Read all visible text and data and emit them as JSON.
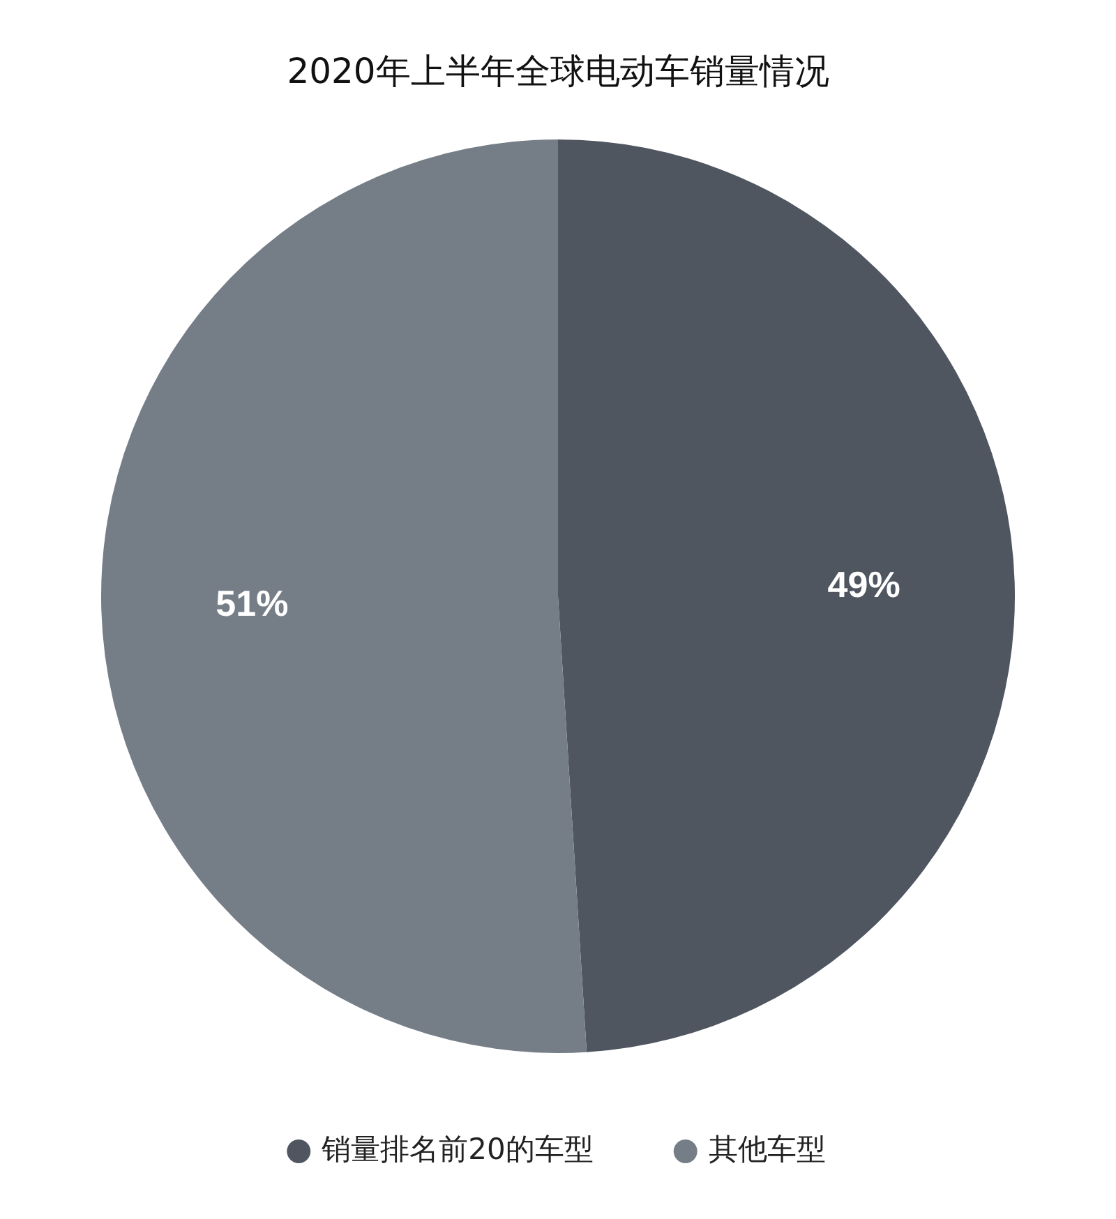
{
  "chart_data": {
    "type": "pie",
    "title": "2020年上半年全球电动车销量情况",
    "categories": [
      "销量排名前20的车型",
      "其他车型"
    ],
    "values": [
      49,
      51
    ],
    "colors": [
      "#4f5660",
      "#757d87"
    ],
    "value_labels": [
      "49%",
      "51%"
    ],
    "legend": "bottom"
  }
}
